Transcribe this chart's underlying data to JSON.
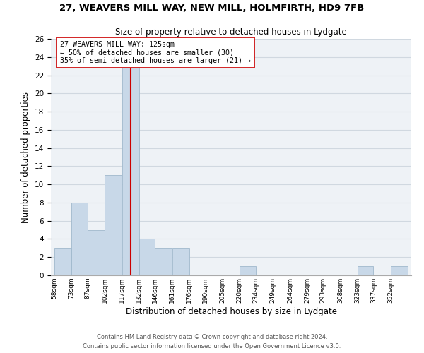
{
  "title1": "27, WEAVERS MILL WAY, NEW MILL, HOLMFIRTH, HD9 7FB",
  "title2": "Size of property relative to detached houses in Lydgate",
  "xlabel": "Distribution of detached houses by size in Lydgate",
  "ylabel": "Number of detached properties",
  "bar_edges": [
    58,
    73,
    87,
    102,
    117,
    132,
    146,
    161,
    176,
    190,
    205,
    220,
    234,
    249,
    264,
    279,
    293,
    308,
    323,
    337,
    352,
    367
  ],
  "bar_heights": [
    3,
    8,
    5,
    11,
    23,
    4,
    3,
    3,
    0,
    0,
    0,
    1,
    0,
    0,
    0,
    0,
    0,
    0,
    1,
    0,
    1
  ],
  "bar_color": "#c8d8e8",
  "bar_edgecolor": "#a0b8cc",
  "grid_color": "#d0d8e0",
  "ref_line_x": 125,
  "ref_line_color": "#cc0000",
  "annotation_text": "27 WEAVERS MILL WAY: 125sqm\n← 50% of detached houses are smaller (30)\n35% of semi-detached houses are larger (21) →",
  "annotation_box_edgecolor": "#cc0000",
  "annotation_box_facecolor": "#ffffff",
  "ylim": [
    0,
    26
  ],
  "yticks": [
    0,
    2,
    4,
    6,
    8,
    10,
    12,
    14,
    16,
    18,
    20,
    22,
    24,
    26
  ],
  "xtick_labels": [
    "58sqm",
    "73sqm",
    "87sqm",
    "102sqm",
    "117sqm",
    "132sqm",
    "146sqm",
    "161sqm",
    "176sqm",
    "190sqm",
    "205sqm",
    "220sqm",
    "234sqm",
    "249sqm",
    "264sqm",
    "279sqm",
    "293sqm",
    "308sqm",
    "323sqm",
    "337sqm",
    "352sqm"
  ],
  "footer1": "Contains HM Land Registry data © Crown copyright and database right 2024.",
  "footer2": "Contains public sector information licensed under the Open Government Licence v3.0.",
  "background_color": "#ffffff",
  "plot_bg_color": "#eef2f6"
}
